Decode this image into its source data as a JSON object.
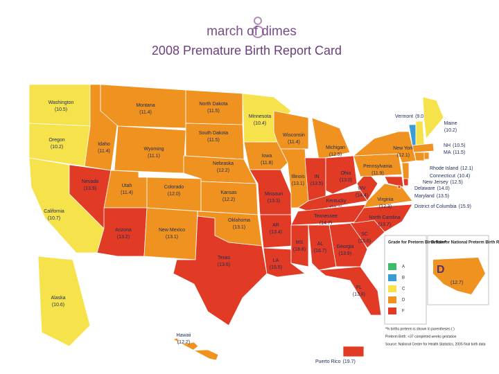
{
  "header": {
    "logo": "march of dimes",
    "title": "2008 Premature Birth Report Card"
  },
  "states": [
    {
      "name": "Washington",
      "rate": "(10.5)",
      "grade": "C"
    },
    {
      "name": "Oregon",
      "rate": "(10.2)",
      "grade": "C"
    },
    {
      "name": "California",
      "rate": "(10.7)",
      "grade": "C"
    },
    {
      "name": "Nevada",
      "rate": "(13.9)",
      "grade": "F"
    },
    {
      "name": "Idaho",
      "rate": "(11.4)",
      "grade": "D"
    },
    {
      "name": "Montana",
      "rate": "(11.4)",
      "grade": "D"
    },
    {
      "name": "Wyoming",
      "rate": "(11.1)",
      "grade": "D"
    },
    {
      "name": "Utah",
      "rate": "(11.4)",
      "grade": "D"
    },
    {
      "name": "Colorado",
      "rate": "(12.0)",
      "grade": "D"
    },
    {
      "name": "Arizona",
      "rate": "(13.2)",
      "grade": "F"
    },
    {
      "name": "New Mexico",
      "rate": "(13.1)",
      "grade": "D"
    },
    {
      "name": "North Dakota",
      "rate": "(11.5)",
      "grade": "D"
    },
    {
      "name": "South Dakota",
      "rate": "(11.5)",
      "grade": "D"
    },
    {
      "name": "Nebraska",
      "rate": "(12.2)",
      "grade": "D"
    },
    {
      "name": "Kansas",
      "rate": "(12.2)",
      "grade": "D"
    },
    {
      "name": "Oklahoma",
      "rate": "(13.1)",
      "grade": "D"
    },
    {
      "name": "Texas",
      "rate": "(13.6)",
      "grade": "F"
    },
    {
      "name": "Minnesota",
      "rate": "(10.4)",
      "grade": "C"
    },
    {
      "name": "Iowa",
      "rate": "(11.8)",
      "grade": "D"
    },
    {
      "name": "Missouri",
      "rate": "(13.3)",
      "grade": "F"
    },
    {
      "name": "AR",
      "rate": "(13.4)",
      "grade": "F"
    },
    {
      "name": "LA",
      "rate": "(15.5)",
      "grade": "F"
    },
    {
      "name": "Wisconsin",
      "rate": "(11.4)",
      "grade": "D"
    },
    {
      "name": "Illinois",
      "rate": "(13.1)",
      "grade": "D"
    },
    {
      "name": "Michigan",
      "rate": "(12.5)",
      "grade": "D"
    },
    {
      "name": "IN",
      "rate": "(13.5)",
      "grade": "F"
    },
    {
      "name": "Ohio",
      "rate": "(13.0)",
      "grade": "F"
    },
    {
      "name": "Kentucky",
      "rate": "(15.2)",
      "grade": "F"
    },
    {
      "name": "Tennessee",
      "rate": "(14.7)",
      "grade": "F"
    },
    {
      "name": "MS",
      "rate": "(18.8)",
      "grade": "F"
    },
    {
      "name": "AL",
      "rate": "(16.7)",
      "grade": "F"
    },
    {
      "name": "Georgia",
      "rate": "(13.9)",
      "grade": "F"
    },
    {
      "name": "FL",
      "rate": "(13.8)",
      "grade": "F"
    },
    {
      "name": "SC",
      "rate": "(15.6)",
      "grade": "F"
    },
    {
      "name": "North Carolina",
      "rate": "(13.7)",
      "grade": "F"
    },
    {
      "name": "Virginia",
      "rate": "(12.3)",
      "grade": "D"
    },
    {
      "name": "WV",
      "rate": "(14.4)",
      "grade": "F"
    },
    {
      "name": "Pennsylvania",
      "rate": "(11.9)",
      "grade": "D"
    },
    {
      "name": "New York",
      "rate": "(12.1)",
      "grade": "D"
    },
    {
      "name": "Vermont",
      "rate": "(9.0)",
      "grade": "B"
    },
    {
      "name": "NH",
      "rate": "(10.5)",
      "grade": "C"
    },
    {
      "name": "Maine",
      "rate": "(10.2)",
      "grade": "C"
    },
    {
      "name": "MA",
      "rate": "(11.5)",
      "grade": "D"
    },
    {
      "name": "Rhode Island",
      "rate": "(12.1)",
      "grade": "D"
    },
    {
      "name": "Connecticut",
      "rate": "(10.4)",
      "grade": "D"
    },
    {
      "name": "New Jersey",
      "rate": "(12.5)",
      "grade": "D"
    },
    {
      "name": "Delaware",
      "rate": "(14.0)",
      "grade": "F"
    },
    {
      "name": "Maryland",
      "rate": "(13.5)",
      "grade": "F"
    },
    {
      "name": "District of Columbia",
      "rate": "(15.9)",
      "grade": "F"
    },
    {
      "name": "Alaska",
      "rate": "(10.6)",
      "grade": "C"
    },
    {
      "name": "Hawaii",
      "rate": "(12.2)",
      "grade": "D"
    },
    {
      "name": "Puerto Rico",
      "rate": "(19.7)",
      "grade": "F"
    }
  ],
  "legend": {
    "title": "Grade for Preterm Birth Rate*",
    "items": [
      {
        "grade": "A",
        "color": "#3dbb6a"
      },
      {
        "grade": "B",
        "color": "#3a9bd5"
      },
      {
        "grade": "C",
        "color": "#f6e24b"
      },
      {
        "grade": "D",
        "color": "#f0921f"
      },
      {
        "grade": "F",
        "color": "#e13b26"
      }
    ]
  },
  "national": {
    "title": "Grade for National Preterm Birth Rate",
    "grade": "D",
    "rate": "(12.7)"
  },
  "footnotes": [
    "*% births preterm is shown in parentheses ( )",
    "Preterm Birth: <37 completed weeks gestation",
    "Source: National Center for Health Statistics, 2005 final birth data"
  ]
}
